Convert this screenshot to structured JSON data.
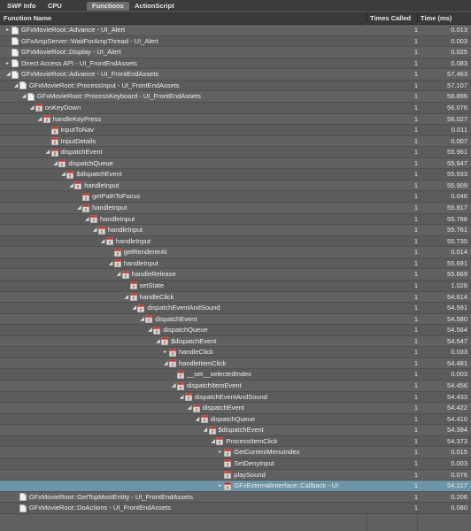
{
  "tabs": [
    "SWF Info",
    "CPU",
    "Functions",
    "ActionScript"
  ],
  "active_tab": "Functions",
  "columns": {
    "name": "Function Name",
    "times": "Times Called",
    "ms": "Time (ms)"
  },
  "rows": [
    {
      "depth": 0,
      "arrow": "right",
      "icon": "doc",
      "name": "GFxMovieRoot::Advance - UI_Alert",
      "times": "1",
      "ms": "0.013"
    },
    {
      "depth": 0,
      "arrow": "",
      "icon": "doc",
      "name": "GFxAmpServer::WaitForAmpThread - UI_Alert",
      "times": "1",
      "ms": "0.003"
    },
    {
      "depth": 0,
      "arrow": "",
      "icon": "doc",
      "name": "GFxMovieRoot::Display - UI_Alert",
      "times": "1",
      "ms": "0.025"
    },
    {
      "depth": 0,
      "arrow": "right",
      "icon": "doc",
      "name": "Direct Access API - UI_FrontEndAssets",
      "times": "1",
      "ms": "0.083"
    },
    {
      "depth": 0,
      "arrow": "down",
      "icon": "doc",
      "name": "GFxMovieRoot::Advance - UI_FrontEndAssets",
      "times": "1",
      "ms": "57.463"
    },
    {
      "depth": 1,
      "arrow": "down",
      "icon": "doc",
      "name": "GFxMovieRoot::ProcessInput - UI_FrontEndAssets",
      "times": "1",
      "ms": "57.107"
    },
    {
      "depth": 2,
      "arrow": "down",
      "icon": "doc",
      "name": "GFxMovieRoot::ProcessKeyboard - UI_FrontEndAssets",
      "times": "1",
      "ms": "56.896"
    },
    {
      "depth": 3,
      "arrow": "down",
      "icon": "fn",
      "name": "onKeyDown",
      "times": "1",
      "ms": "56.076"
    },
    {
      "depth": 4,
      "arrow": "down",
      "icon": "fn",
      "name": "handleKeyPress",
      "times": "1",
      "ms": "56.027"
    },
    {
      "depth": 5,
      "arrow": "",
      "icon": "fn",
      "name": "inputToNav",
      "times": "1",
      "ms": "0.011"
    },
    {
      "depth": 5,
      "arrow": "",
      "icon": "fn",
      "name": "InputDetails",
      "times": "1",
      "ms": "0.007"
    },
    {
      "depth": 5,
      "arrow": "down",
      "icon": "fn",
      "name": "dispatchEvent",
      "times": "1",
      "ms": "55.961"
    },
    {
      "depth": 6,
      "arrow": "down",
      "icon": "fn",
      "name": "dispatchQueue",
      "times": "1",
      "ms": "55.947"
    },
    {
      "depth": 7,
      "arrow": "down",
      "icon": "fn",
      "name": "$dispatchEvent",
      "times": "1",
      "ms": "55.933"
    },
    {
      "depth": 8,
      "arrow": "down",
      "icon": "fn",
      "name": "handleInput",
      "times": "1",
      "ms": "55.909"
    },
    {
      "depth": 9,
      "arrow": "",
      "icon": "fn",
      "name": "getPathToFocus",
      "times": "1",
      "ms": "0.046"
    },
    {
      "depth": 9,
      "arrow": "down",
      "icon": "fn",
      "name": "handleInput",
      "times": "1",
      "ms": "55.817"
    },
    {
      "depth": 10,
      "arrow": "down",
      "icon": "fn",
      "name": "handleInput",
      "times": "1",
      "ms": "55.788"
    },
    {
      "depth": 11,
      "arrow": "down",
      "icon": "fn",
      "name": "handleInput",
      "times": "1",
      "ms": "55.761"
    },
    {
      "depth": 12,
      "arrow": "down",
      "icon": "fn",
      "name": "handleInput",
      "times": "1",
      "ms": "55.735"
    },
    {
      "depth": 13,
      "arrow": "",
      "icon": "fn",
      "name": "getRendererAt",
      "times": "1",
      "ms": "0.014"
    },
    {
      "depth": 13,
      "arrow": "down",
      "icon": "fn",
      "name": "handleInput",
      "times": "1",
      "ms": "55.691"
    },
    {
      "depth": 14,
      "arrow": "down",
      "icon": "fn",
      "name": "handleRelease",
      "times": "1",
      "ms": "55.669"
    },
    {
      "depth": 15,
      "arrow": "",
      "icon": "fn",
      "name": "setState",
      "times": "1",
      "ms": "1.028"
    },
    {
      "depth": 15,
      "arrow": "down",
      "icon": "fn",
      "name": "handleClick",
      "times": "1",
      "ms": "54.614"
    },
    {
      "depth": 16,
      "arrow": "down",
      "icon": "fn",
      "name": "dispatchEventAndSound",
      "times": "1",
      "ms": "54.591"
    },
    {
      "depth": 17,
      "arrow": "down",
      "icon": "fn",
      "name": "dispatchEvent",
      "times": "1",
      "ms": "54.580"
    },
    {
      "depth": 18,
      "arrow": "down",
      "icon": "fn",
      "name": "dispatchQueue",
      "times": "1",
      "ms": "54.564"
    },
    {
      "depth": 19,
      "arrow": "down",
      "icon": "fn",
      "name": "$dispatchEvent",
      "times": "1",
      "ms": "54.547"
    },
    {
      "depth": 20,
      "arrow": "right",
      "icon": "fn",
      "name": "handleClick",
      "times": "1",
      "ms": "0.033"
    },
    {
      "depth": 20,
      "arrow": "down",
      "icon": "fn",
      "name": "handleItemClick",
      "times": "1",
      "ms": "54.481"
    },
    {
      "depth": 21,
      "arrow": "",
      "icon": "fn",
      "name": "__set__selectedIndex",
      "times": "1",
      "ms": "0.003"
    },
    {
      "depth": 21,
      "arrow": "down",
      "icon": "fn",
      "name": "dispatchItemEvent",
      "times": "1",
      "ms": "54.456"
    },
    {
      "depth": 22,
      "arrow": "down",
      "icon": "fn",
      "name": "dispatchEventAndSound",
      "times": "1",
      "ms": "54.433"
    },
    {
      "depth": 23,
      "arrow": "down",
      "icon": "fn",
      "name": "dispatchEvent",
      "times": "1",
      "ms": "54.422"
    },
    {
      "depth": 24,
      "arrow": "down",
      "icon": "fn",
      "name": "dispatchQueue",
      "times": "1",
      "ms": "54.410"
    },
    {
      "depth": 25,
      "arrow": "down",
      "icon": "fn",
      "name": "$dispatchEvent",
      "times": "1",
      "ms": "54.394"
    },
    {
      "depth": 26,
      "arrow": "down",
      "icon": "fn",
      "name": "ProcessItemClick",
      "times": "1",
      "ms": "54.373"
    },
    {
      "depth": 27,
      "arrow": "right",
      "icon": "fn",
      "name": "GetCurrentMenuIndex",
      "times": "1",
      "ms": "0.015"
    },
    {
      "depth": 27,
      "arrow": "",
      "icon": "fn",
      "name": "SetDenyInput",
      "times": "1",
      "ms": "0.003"
    },
    {
      "depth": 27,
      "arrow": "",
      "icon": "fn",
      "name": "playSound",
      "times": "1",
      "ms": "0.076"
    },
    {
      "depth": 27,
      "arrow": "right",
      "icon": "fn",
      "name": "GFxExternalInterface::Callback - UI",
      "times": "1",
      "ms": "54.217",
      "selected": true
    },
    {
      "depth": 1,
      "arrow": "",
      "icon": "doc",
      "name": "GFxMovieRoot::GetTopMostEntity - UI_FrontEndAssets",
      "times": "1",
      "ms": "0.206"
    },
    {
      "depth": 1,
      "arrow": "",
      "icon": "doc",
      "name": "GFxMovieRoot::DoActions - UI_FrontEndAssets",
      "times": "1",
      "ms": "0.080"
    }
  ]
}
